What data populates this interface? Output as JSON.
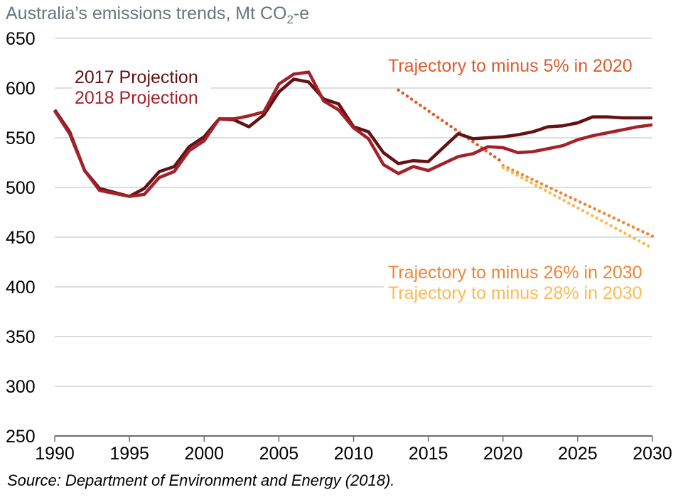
{
  "chart_data": {
    "type": "line",
    "title": "Australia’s emissions trends, Mt CO",
    "title_subscript": "2",
    "title_suffix": "-e",
    "xlabel": "",
    "ylabel": "",
    "xlim": [
      1990,
      2030
    ],
    "ylim": [
      250,
      650
    ],
    "x_ticks": [
      1990,
      1995,
      2000,
      2005,
      2010,
      2015,
      2020,
      2025,
      2030
    ],
    "y_ticks": [
      650,
      600,
      550,
      500,
      450,
      400,
      350,
      300,
      250
    ],
    "grid": "horizontal",
    "series": [
      {
        "name": "2017 Projection",
        "color": "#621214",
        "style": "solid",
        "x": [
          1990,
          1991,
          1992,
          1993,
          1994,
          1995,
          1996,
          1997,
          1998,
          1999,
          2000,
          2001,
          2002,
          2003,
          2004,
          2005,
          2006,
          2007,
          2008,
          2009,
          2010,
          2011,
          2012,
          2013,
          2014,
          2015,
          2016,
          2017,
          2018,
          2019,
          2020,
          2021,
          2022,
          2023,
          2024,
          2025,
          2026,
          2027,
          2028,
          2029,
          2030
        ],
        "values": [
          578,
          556,
          517,
          499,
          495,
          491,
          499,
          516,
          521,
          541,
          551,
          569,
          568,
          561,
          573,
          596,
          609,
          606,
          589,
          584,
          561,
          556,
          535,
          524,
          527,
          526,
          540,
          554,
          549,
          550,
          551,
          553,
          556,
          561,
          562,
          565,
          571,
          571,
          570,
          570,
          570
        ]
      },
      {
        "name": "2018 Projection",
        "color": "#a3222a",
        "style": "solid",
        "x": [
          1990,
          1991,
          1992,
          1993,
          1994,
          1995,
          1996,
          1997,
          1998,
          1999,
          2000,
          2001,
          2002,
          2003,
          2004,
          2005,
          2006,
          2007,
          2008,
          2009,
          2010,
          2011,
          2012,
          2013,
          2014,
          2015,
          2016,
          2017,
          2018,
          2019,
          2020,
          2021,
          2022,
          2023,
          2024,
          2025,
          2026,
          2027,
          2028,
          2029,
          2030
        ],
        "values": [
          577,
          554,
          517,
          497,
          494,
          491,
          493,
          510,
          516,
          537,
          547,
          569,
          569,
          572,
          576,
          604,
          614,
          616,
          587,
          578,
          560,
          549,
          523,
          514,
          521,
          517,
          524,
          531,
          534,
          541,
          540,
          535,
          536,
          539,
          542,
          548,
          552,
          555,
          558,
          561,
          563
        ]
      },
      {
        "name": "Trajectory to minus 5% in 2020",
        "color": "#e05a2b",
        "style": "dotted",
        "x": [
          2013,
          2020
        ],
        "values": [
          598,
          525
        ]
      },
      {
        "name": "Trajectory to minus 26% in 2030",
        "color": "#f08536",
        "style": "dotted",
        "x": [
          2020,
          2030
        ],
        "values": [
          522,
          451
        ]
      },
      {
        "name": "Trajectory to minus 28% in 2030",
        "color": "#fbba4f",
        "style": "dotted",
        "x": [
          2020,
          2030
        ],
        "values": [
          520,
          439
        ]
      }
    ],
    "legend": [
      "2017 Projection",
      "2018 Projection"
    ],
    "legend_placement": "top-left",
    "annotations": [
      {
        "text": "Trajectory to minus 5% in 2020",
        "color": "#e05a2b",
        "placement": "top-right"
      },
      {
        "text": "Trajectory to minus 26% in 2030",
        "color": "#f08536",
        "placement": "right"
      },
      {
        "text": "Trajectory to minus 28% in 2030",
        "color": "#fbba4f",
        "placement": "right"
      }
    ]
  },
  "source": "Source: Department of Environment and Energy (2018)."
}
